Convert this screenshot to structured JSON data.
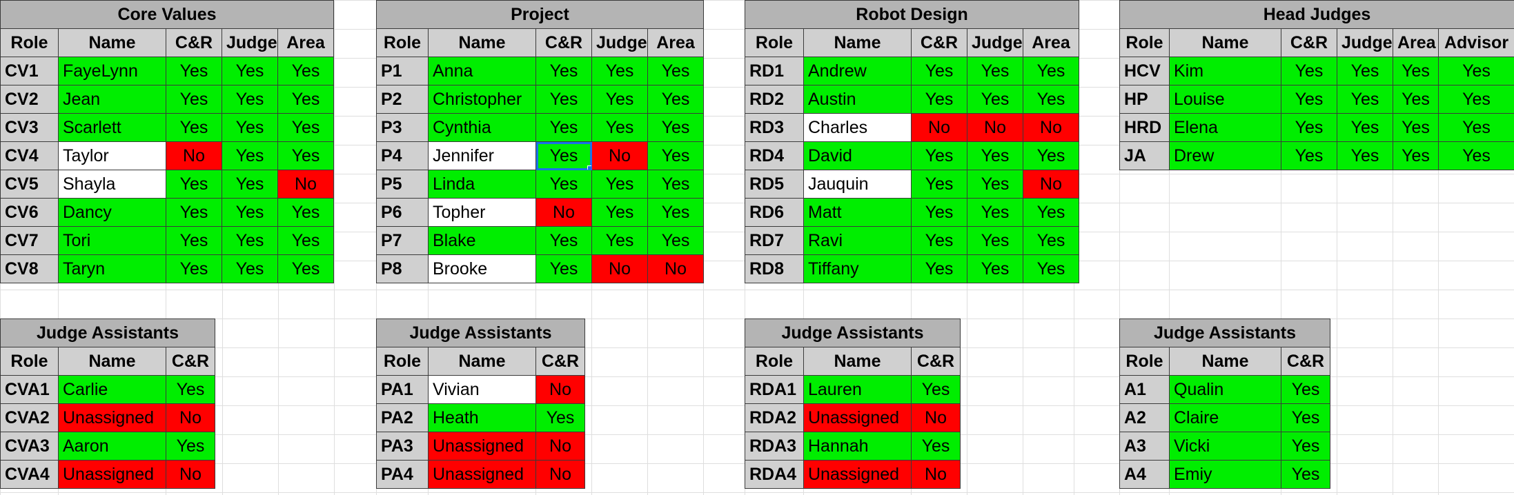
{
  "colors": {
    "yes": "#00ee00",
    "no": "#ff0000",
    "header": "#d0d0d0",
    "title": "#b4b4b4"
  },
  "core_values": {
    "title": "Core Values",
    "headers": [
      "Role",
      "Name",
      "C&R",
      "Judge",
      "Area"
    ],
    "rows": [
      {
        "role": "CV1",
        "name": "FayeLynn",
        "cr": "Yes",
        "judge": "Yes",
        "area": "Yes"
      },
      {
        "role": "CV2",
        "name": "Jean",
        "cr": "Yes",
        "judge": "Yes",
        "area": "Yes"
      },
      {
        "role": "CV3",
        "name": "Scarlett",
        "cr": "Yes",
        "judge": "Yes",
        "area": "Yes"
      },
      {
        "role": "CV4",
        "name": "Taylor",
        "cr": "No",
        "judge": "Yes",
        "area": "Yes"
      },
      {
        "role": "CV5",
        "name": "Shayla",
        "cr": "Yes",
        "judge": "Yes",
        "area": "No"
      },
      {
        "role": "CV6",
        "name": "Dancy",
        "cr": "Yes",
        "judge": "Yes",
        "area": "Yes"
      },
      {
        "role": "CV7",
        "name": "Tori",
        "cr": "Yes",
        "judge": "Yes",
        "area": "Yes"
      },
      {
        "role": "CV8",
        "name": "Taryn",
        "cr": "Yes",
        "judge": "Yes",
        "area": "Yes"
      }
    ]
  },
  "project": {
    "title": "Project",
    "headers": [
      "Role",
      "Name",
      "C&R",
      "Judge",
      "Area"
    ],
    "rows": [
      {
        "role": "P1",
        "name": "Anna",
        "cr": "Yes",
        "judge": "Yes",
        "area": "Yes"
      },
      {
        "role": "P2",
        "name": "Christopher",
        "cr": "Yes",
        "judge": "Yes",
        "area": "Yes"
      },
      {
        "role": "P3",
        "name": "Cynthia",
        "cr": "Yes",
        "judge": "Yes",
        "area": "Yes"
      },
      {
        "role": "P4",
        "name": "Jennifer",
        "cr": "Yes",
        "judge": "No",
        "area": "Yes"
      },
      {
        "role": "P5",
        "name": "Linda",
        "cr": "Yes",
        "judge": "Yes",
        "area": "Yes"
      },
      {
        "role": "P6",
        "name": "Topher",
        "cr": "No",
        "judge": "Yes",
        "area": "Yes"
      },
      {
        "role": "P7",
        "name": "Blake",
        "cr": "Yes",
        "judge": "Yes",
        "area": "Yes"
      },
      {
        "role": "P8",
        "name": "Brooke",
        "cr": "Yes",
        "judge": "No",
        "area": "No"
      }
    ]
  },
  "robot_design": {
    "title": "Robot Design",
    "headers": [
      "Role",
      "Name",
      "C&R",
      "Judge",
      "Area"
    ],
    "rows": [
      {
        "role": "RD1",
        "name": "Andrew",
        "cr": "Yes",
        "judge": "Yes",
        "area": "Yes"
      },
      {
        "role": "RD2",
        "name": "Austin",
        "cr": "Yes",
        "judge": "Yes",
        "area": "Yes"
      },
      {
        "role": "RD3",
        "name": "Charles",
        "cr": "No",
        "judge": "No",
        "area": "No"
      },
      {
        "role": "RD4",
        "name": "David",
        "cr": "Yes",
        "judge": "Yes",
        "area": "Yes"
      },
      {
        "role": "RD5",
        "name": "Jauquin",
        "cr": "Yes",
        "judge": "Yes",
        "area": "No"
      },
      {
        "role": "RD6",
        "name": "Matt",
        "cr": "Yes",
        "judge": "Yes",
        "area": "Yes"
      },
      {
        "role": "RD7",
        "name": "Ravi",
        "cr": "Yes",
        "judge": "Yes",
        "area": "Yes"
      },
      {
        "role": "RD8",
        "name": "Tiffany",
        "cr": "Yes",
        "judge": "Yes",
        "area": "Yes"
      }
    ]
  },
  "head_judges": {
    "title": "Head Judges",
    "headers": [
      "Role",
      "Name",
      "C&R",
      "Judge",
      "Area",
      "Advisor"
    ],
    "rows": [
      {
        "role": "HCV",
        "name": "Kim",
        "cr": "Yes",
        "judge": "Yes",
        "area": "Yes",
        "advisor": "Yes"
      },
      {
        "role": "HP",
        "name": "Louise",
        "cr": "Yes",
        "judge": "Yes",
        "area": "Yes",
        "advisor": "Yes"
      },
      {
        "role": "HRD",
        "name": "Elena",
        "cr": "Yes",
        "judge": "Yes",
        "area": "Yes",
        "advisor": "Yes"
      },
      {
        "role": "JA",
        "name": "Drew",
        "cr": "Yes",
        "judge": "Yes",
        "area": "Yes",
        "advisor": "Yes"
      }
    ]
  },
  "cv_assistants": {
    "title": "Judge Assistants",
    "headers": [
      "Role",
      "Name",
      "C&R"
    ],
    "rows": [
      {
        "role": "CVA1",
        "name": "Carlie",
        "cr": "Yes"
      },
      {
        "role": "CVA2",
        "name": "Unassigned",
        "cr": "No"
      },
      {
        "role": "CVA3",
        "name": "Aaron",
        "cr": "Yes"
      },
      {
        "role": "CVA4",
        "name": "Unassigned",
        "cr": "No"
      }
    ]
  },
  "p_assistants": {
    "title": "Judge Assistants",
    "headers": [
      "Role",
      "Name",
      "C&R"
    ],
    "rows": [
      {
        "role": "PA1",
        "name": "Vivian",
        "cr": "No"
      },
      {
        "role": "PA2",
        "name": "Heath",
        "cr": "Yes"
      },
      {
        "role": "PA3",
        "name": "Unassigned",
        "cr": "No"
      },
      {
        "role": "PA4",
        "name": "Unassigned",
        "cr": "No"
      }
    ]
  },
  "rd_assistants": {
    "title": "Judge Assistants",
    "headers": [
      "Role",
      "Name",
      "C&R"
    ],
    "rows": [
      {
        "role": "RDA1",
        "name": "Lauren",
        "cr": "Yes"
      },
      {
        "role": "RDA2",
        "name": "Unassigned",
        "cr": "No"
      },
      {
        "role": "RDA3",
        "name": "Hannah",
        "cr": "Yes"
      },
      {
        "role": "RDA4",
        "name": "Unassigned",
        "cr": "No"
      }
    ]
  },
  "head_assistants": {
    "title": "Judge Assistants",
    "headers": [
      "Role",
      "Name",
      "C&R"
    ],
    "rows": [
      {
        "role": "A1",
        "name": "Qualin",
        "cr": "Yes"
      },
      {
        "role": "A2",
        "name": "Claire",
        "cr": "Yes"
      },
      {
        "role": "A3",
        "name": "Vicki",
        "cr": "Yes"
      },
      {
        "role": "A4",
        "name": "Emiy",
        "cr": "Yes"
      }
    ]
  },
  "selected_cell": "P4-cr"
}
